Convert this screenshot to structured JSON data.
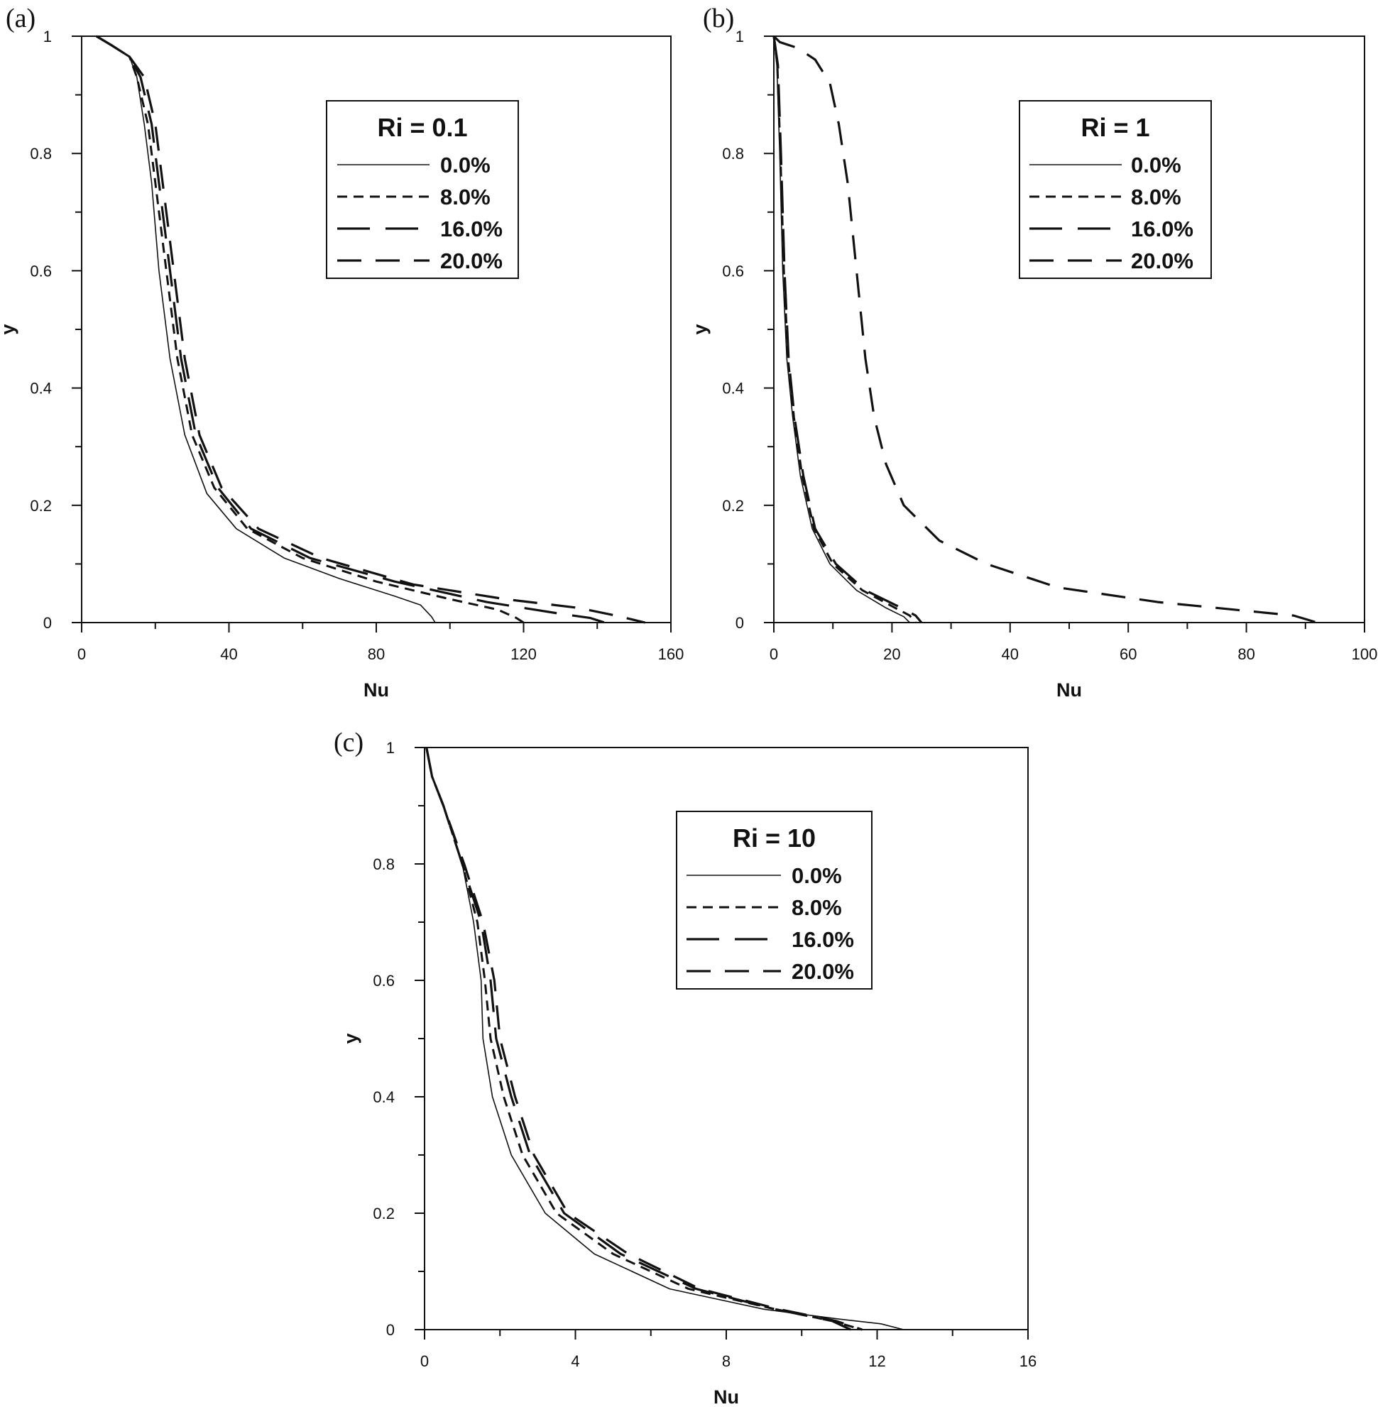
{
  "chart_data": [
    {
      "type": "line",
      "panel_label": "(a)",
      "xlabel": "Nu",
      "ylabel": "y",
      "xlim": [
        0,
        160
      ],
      "ylim": [
        0,
        1
      ],
      "xticks": [
        "0",
        "40",
        "80",
        "120",
        "160"
      ],
      "yticks": [
        "0",
        "0.2",
        "0.4",
        "0.6",
        "0.8",
        "1"
      ],
      "grid": false,
      "legend_position": "top-right",
      "legend_title": "Ri = 0.1",
      "series": [
        {
          "name": "0.0%",
          "style": "solid",
          "points": [
            [
              4,
              1
            ],
            [
              8,
              0.985
            ],
            [
              13,
              0.965
            ],
            [
              15,
              0.93
            ],
            [
              17,
              0.85
            ],
            [
              19,
              0.75
            ],
            [
              21,
              0.6
            ],
            [
              24,
              0.45
            ],
            [
              28,
              0.32
            ],
            [
              34,
              0.22
            ],
            [
              42,
              0.16
            ],
            [
              55,
              0.11
            ],
            [
              70,
              0.075
            ],
            [
              85,
              0.045
            ],
            [
              92,
              0.03
            ],
            [
              95,
              0.01
            ],
            [
              96,
              0
            ]
          ]
        },
        {
          "name": "8.0%",
          "style": "dash-short",
          "points": [
            [
              4,
              1
            ],
            [
              8,
              0.985
            ],
            [
              13,
              0.965
            ],
            [
              15,
              0.93
            ],
            [
              18,
              0.85
            ],
            [
              20,
              0.75
            ],
            [
              23,
              0.6
            ],
            [
              26,
              0.45
            ],
            [
              30,
              0.32
            ],
            [
              36,
              0.23
            ],
            [
              45,
              0.16
            ],
            [
              60,
              0.11
            ],
            [
              80,
              0.07
            ],
            [
              100,
              0.04
            ],
            [
              113,
              0.022
            ],
            [
              118,
              0.008
            ],
            [
              120,
              0
            ]
          ]
        },
        {
          "name": "16.0%",
          "style": "dash-long",
          "points": [
            [
              4,
              1
            ],
            [
              8,
              0.985
            ],
            [
              13,
              0.965
            ],
            [
              16,
              0.93
            ],
            [
              19,
              0.85
            ],
            [
              21,
              0.75
            ],
            [
              24,
              0.6
            ],
            [
              27,
              0.45
            ],
            [
              31,
              0.32
            ],
            [
              37,
              0.23
            ],
            [
              46,
              0.16
            ],
            [
              62,
              0.11
            ],
            [
              85,
              0.07
            ],
            [
              110,
              0.035
            ],
            [
              130,
              0.015
            ],
            [
              138,
              0.008
            ],
            [
              142,
              0
            ]
          ]
        },
        {
          "name": "20.0%",
          "style": "dash-xlong",
          "points": [
            [
              4,
              1
            ],
            [
              8,
              0.985
            ],
            [
              13,
              0.965
            ],
            [
              17,
              0.93
            ],
            [
              20,
              0.85
            ],
            [
              22,
              0.75
            ],
            [
              25,
              0.6
            ],
            [
              28,
              0.45
            ],
            [
              32,
              0.32
            ],
            [
              38,
              0.23
            ],
            [
              48,
              0.16
            ],
            [
              65,
              0.11
            ],
            [
              90,
              0.065
            ],
            [
              115,
              0.04
            ],
            [
              135,
              0.025
            ],
            [
              145,
              0.012
            ],
            [
              153,
              0
            ]
          ]
        }
      ]
    },
    {
      "type": "line",
      "panel_label": "(b)",
      "xlabel": "Nu",
      "ylabel": "y",
      "xlim": [
        0,
        100
      ],
      "ylim": [
        0,
        1
      ],
      "xticks": [
        "0",
        "20",
        "40",
        "60",
        "80",
        "100"
      ],
      "yticks": [
        "0",
        "0.2",
        "0.4",
        "0.6",
        "0.8",
        "1"
      ],
      "grid": false,
      "legend_position": "top-right",
      "legend_title": "Ri = 1",
      "series": [
        {
          "name": "0.0%",
          "style": "solid",
          "points": [
            [
              0,
              1
            ],
            [
              0.5,
              0.95
            ],
            [
              1,
              0.8
            ],
            [
              1.5,
              0.6
            ],
            [
              2.2,
              0.45
            ],
            [
              3.2,
              0.35
            ],
            [
              4.5,
              0.25
            ],
            [
              6.5,
              0.16
            ],
            [
              9.5,
              0.1
            ],
            [
              14,
              0.055
            ],
            [
              19,
              0.025
            ],
            [
              22,
              0.01
            ],
            [
              23,
              0
            ]
          ]
        },
        {
          "name": "8.0%",
          "style": "dash-short",
          "points": [
            [
              0,
              1
            ],
            [
              0.6,
              0.95
            ],
            [
              1.1,
              0.8
            ],
            [
              1.7,
              0.6
            ],
            [
              2.4,
              0.45
            ],
            [
              3.4,
              0.35
            ],
            [
              4.8,
              0.25
            ],
            [
              6.8,
              0.16
            ],
            [
              10,
              0.1
            ],
            [
              15,
              0.055
            ],
            [
              20,
              0.028
            ],
            [
              23,
              0.012
            ],
            [
              24,
              0
            ]
          ]
        },
        {
          "name": "16.0%",
          "style": "dash-long",
          "points": [
            [
              0,
              1
            ],
            [
              0.7,
              0.95
            ],
            [
              1.2,
              0.8
            ],
            [
              1.8,
              0.6
            ],
            [
              2.5,
              0.45
            ],
            [
              3.5,
              0.35
            ],
            [
              5,
              0.25
            ],
            [
              7,
              0.16
            ],
            [
              10.5,
              0.1
            ],
            [
              15.5,
              0.055
            ],
            [
              21,
              0.028
            ],
            [
              24,
              0.012
            ],
            [
              25,
              0
            ]
          ]
        },
        {
          "name": "20.0%",
          "style": "dash-xlong",
          "points": [
            [
              0,
              1
            ],
            [
              1,
              0.99
            ],
            [
              4,
              0.98
            ],
            [
              7,
              0.96
            ],
            [
              9.5,
              0.92
            ],
            [
              11,
              0.85
            ],
            [
              12.5,
              0.75
            ],
            [
              14,
              0.6
            ],
            [
              15.5,
              0.45
            ],
            [
              17,
              0.35
            ],
            [
              19,
              0.27
            ],
            [
              22,
              0.2
            ],
            [
              28,
              0.14
            ],
            [
              36,
              0.1
            ],
            [
              48,
              0.06
            ],
            [
              65,
              0.035
            ],
            [
              80,
              0.02
            ],
            [
              88,
              0.012
            ],
            [
              92,
              0
            ]
          ]
        }
      ]
    },
    {
      "type": "line",
      "panel_label": "(c)",
      "xlabel": "Nu",
      "ylabel": "y",
      "xlim": [
        0,
        16
      ],
      "ylim": [
        0,
        1
      ],
      "xticks": [
        "0",
        "4",
        "8",
        "12",
        "16"
      ],
      "yticks": [
        "0",
        "0.2",
        "0.4",
        "0.6",
        "0.8",
        "1"
      ],
      "grid": false,
      "legend_position": "top-right",
      "legend_title": "Ri = 10",
      "series": [
        {
          "name": "0.0%",
          "style": "solid",
          "points": [
            [
              0.05,
              1
            ],
            [
              0.2,
              0.95
            ],
            [
              0.5,
              0.9
            ],
            [
              1,
              0.8
            ],
            [
              1.3,
              0.7
            ],
            [
              1.5,
              0.6
            ],
            [
              1.55,
              0.5
            ],
            [
              1.8,
              0.4
            ],
            [
              2.3,
              0.3
            ],
            [
              3.2,
              0.2
            ],
            [
              4.5,
              0.13
            ],
            [
              6.5,
              0.07
            ],
            [
              9,
              0.035
            ],
            [
              11,
              0.018
            ],
            [
              12.1,
              0.01
            ],
            [
              12.7,
              0
            ]
          ]
        },
        {
          "name": "8.0%",
          "style": "dash-short",
          "points": [
            [
              0.05,
              1
            ],
            [
              0.2,
              0.95
            ],
            [
              0.5,
              0.9
            ],
            [
              1,
              0.8
            ],
            [
              1.4,
              0.7
            ],
            [
              1.6,
              0.6
            ],
            [
              1.75,
              0.5
            ],
            [
              2.1,
              0.4
            ],
            [
              2.6,
              0.3
            ],
            [
              3.5,
              0.2
            ],
            [
              5,
              0.13
            ],
            [
              7,
              0.07
            ],
            [
              9.3,
              0.035
            ],
            [
              10.8,
              0.015
            ],
            [
              11.6,
              0
            ]
          ]
        },
        {
          "name": "16.0%",
          "style": "dash-long",
          "points": [
            [
              0.05,
              1
            ],
            [
              0.2,
              0.95
            ],
            [
              0.5,
              0.9
            ],
            [
              1,
              0.8
            ],
            [
              1.5,
              0.7
            ],
            [
              1.75,
              0.6
            ],
            [
              1.9,
              0.5
            ],
            [
              2.3,
              0.4
            ],
            [
              2.8,
              0.3
            ],
            [
              3.7,
              0.2
            ],
            [
              5.2,
              0.13
            ],
            [
              7.2,
              0.07
            ],
            [
              9.3,
              0.035
            ],
            [
              10.8,
              0.015
            ],
            [
              11.3,
              0
            ]
          ]
        },
        {
          "name": "20.0%",
          "style": "dash-xlong",
          "points": [
            [
              0.05,
              1
            ],
            [
              0.2,
              0.95
            ],
            [
              0.5,
              0.9
            ],
            [
              1.05,
              0.8
            ],
            [
              1.55,
              0.7
            ],
            [
              1.85,
              0.6
            ],
            [
              2,
              0.5
            ],
            [
              2.4,
              0.4
            ],
            [
              2.9,
              0.3
            ],
            [
              3.8,
              0.2
            ],
            [
              5.4,
              0.13
            ],
            [
              7.3,
              0.07
            ],
            [
              9.4,
              0.035
            ],
            [
              10.9,
              0.015
            ],
            [
              11.6,
              0
            ]
          ]
        }
      ]
    }
  ]
}
